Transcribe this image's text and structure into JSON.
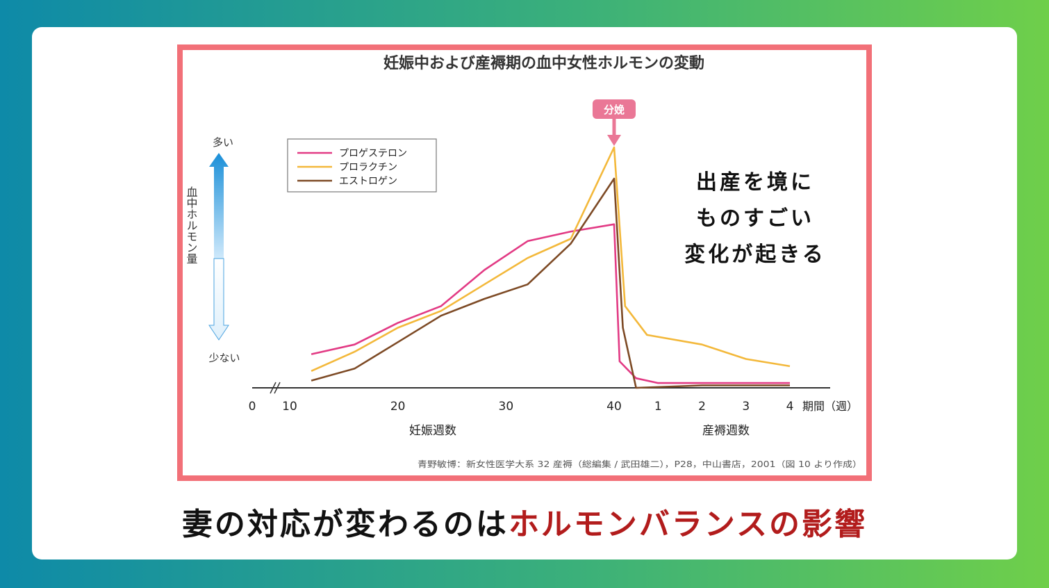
{
  "chart_data": {
    "type": "line",
    "title": "妊娠中および産褥期の血中女性ホルモンの変動",
    "ylabel": "血中ホルモン量",
    "y_top_label": "多い",
    "y_bottom_label": "少ない",
    "x_unit_label": "期間（週）",
    "x_origin_label": "0",
    "pregnancy_ticks": [
      "10",
      "20",
      "30",
      "40"
    ],
    "postpartum_ticks": [
      "1",
      "2",
      "3",
      "4"
    ],
    "pregnancy_section_label": "妊娠週数",
    "postpartum_section_label": "産褥週数",
    "birth_marker_label": "分娩",
    "ylim": [
      0,
      100
    ],
    "source": "青野敏博：新女性医学大系 32 産褥（総編集 / 武田雄二），P28，中山書店，2001（図 10 より作成）",
    "series": [
      {
        "name": "プロゲステロン",
        "color": "#e23a84",
        "points": [
          [
            12,
            14
          ],
          [
            16,
            18
          ],
          [
            20,
            27
          ],
          [
            24,
            34
          ],
          [
            28,
            49
          ],
          [
            32,
            61
          ],
          [
            36,
            65
          ],
          [
            40,
            68
          ],
          [
            40.5,
            11
          ],
          [
            42,
            4
          ],
          [
            44,
            2
          ],
          [
            48,
            2
          ],
          [
            52,
            2
          ],
          [
            56,
            2
          ]
        ]
      },
      {
        "name": "プロラクチン",
        "color": "#f3b83a",
        "points": [
          [
            12,
            7
          ],
          [
            16,
            15
          ],
          [
            20,
            25
          ],
          [
            24,
            32
          ],
          [
            28,
            43
          ],
          [
            32,
            54
          ],
          [
            36,
            62
          ],
          [
            40,
            100
          ],
          [
            41,
            34
          ],
          [
            43,
            22
          ],
          [
            48,
            18
          ],
          [
            52,
            12
          ],
          [
            56,
            9
          ]
        ]
      },
      {
        "name": "エストロゲン",
        "color": "#7d4a25",
        "points": [
          [
            12,
            3
          ],
          [
            16,
            8
          ],
          [
            20,
            19
          ],
          [
            24,
            30
          ],
          [
            28,
            37
          ],
          [
            32,
            43
          ],
          [
            36,
            60
          ],
          [
            40,
            87
          ],
          [
            40.8,
            25
          ],
          [
            42,
            0
          ],
          [
            48,
            1
          ],
          [
            52,
            1
          ],
          [
            56,
            1
          ]
        ]
      }
    ]
  },
  "annotation_lines": [
    "出産を境に",
    "ものすごい",
    "変化が起きる"
  ],
  "caption": {
    "prefix": "妻の対応が変わるのは",
    "highlight": "ホルモンバランスの影響"
  },
  "colors": {
    "frame": "#f27078",
    "arrow_up": "#1a8fd8",
    "arrow_down_fill": "#dff0fb",
    "birth_badge": "#ea7796",
    "caption_highlight": "#b21c1c"
  }
}
